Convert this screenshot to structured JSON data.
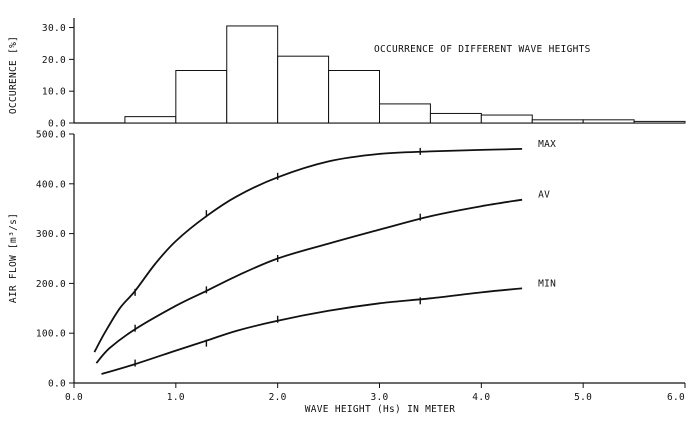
{
  "chart_data": [
    {
      "type": "bar",
      "title": "OCCURRENCE OF DIFFERENT WAVE HEIGHTS",
      "ylabel": "OCCURENCE [%]",
      "ylim": [
        0,
        33
      ],
      "yticks": [
        "0.0",
        "10.0",
        "20.0",
        "30.0"
      ],
      "bin_width": 0.5,
      "bin_starts": [
        0.5,
        1.0,
        1.5,
        2.0,
        2.5,
        3.0,
        3.5,
        4.0,
        4.5,
        5.0,
        5.5
      ],
      "values": [
        2.0,
        16.5,
        30.5,
        21.0,
        16.5,
        6.0,
        3.0,
        2.5,
        1.0,
        1.0,
        0.5
      ]
    },
    {
      "type": "line",
      "xlabel": "WAVE HEIGHT (Hs) IN METER",
      "ylabel": "AIR FLOW [m³/s]",
      "xlim": [
        0,
        6
      ],
      "ylim": [
        0,
        500
      ],
      "xticks": [
        "0.0",
        "1.0",
        "2.0",
        "3.0",
        "4.0",
        "5.0",
        "6.0"
      ],
      "yticks": [
        "0.0",
        "100.0",
        "200.0",
        "300.0",
        "400.0",
        "500.0"
      ],
      "series": [
        {
          "name": "MAX",
          "x": [
            0.2,
            0.3,
            0.45,
            0.6,
            0.8,
            1.0,
            1.3,
            1.6,
            2.0,
            2.5,
            3.0,
            3.5,
            4.0,
            4.4
          ],
          "y": [
            62,
            100,
            150,
            185,
            240,
            285,
            335,
            375,
            413,
            445,
            460,
            465,
            468,
            470
          ]
        },
        {
          "name": "AV",
          "x": [
            0.22,
            0.35,
            0.6,
            1.0,
            1.3,
            1.6,
            2.0,
            2.5,
            3.0,
            3.5,
            4.0,
            4.4
          ],
          "y": [
            40,
            70,
            108,
            155,
            185,
            215,
            250,
            280,
            308,
            335,
            355,
            368
          ]
        },
        {
          "name": "MIN",
          "x": [
            0.27,
            0.6,
            1.0,
            1.3,
            1.6,
            2.0,
            2.5,
            3.0,
            3.5,
            4.0,
            4.4
          ],
          "y": [
            18,
            38,
            65,
            85,
            105,
            125,
            145,
            160,
            170,
            182,
            190
          ]
        }
      ],
      "markers": [
        {
          "series": "MAX",
          "x": 0.6,
          "y": 182
        },
        {
          "series": "MAX",
          "x": 1.3,
          "y": 340
        },
        {
          "series": "MAX",
          "x": 2.0,
          "y": 415
        },
        {
          "series": "MAX",
          "x": 3.4,
          "y": 465
        },
        {
          "series": "AV",
          "x": 0.6,
          "y": 110
        },
        {
          "series": "AV",
          "x": 1.3,
          "y": 187
        },
        {
          "series": "AV",
          "x": 2.0,
          "y": 250
        },
        {
          "series": "AV",
          "x": 3.4,
          "y": 333
        },
        {
          "series": "MIN",
          "x": 0.6,
          "y": 40
        },
        {
          "series": "MIN",
          "x": 1.3,
          "y": 80
        },
        {
          "series": "MIN",
          "x": 2.0,
          "y": 128
        },
        {
          "series": "MIN",
          "x": 3.4,
          "y": 165
        }
      ]
    }
  ]
}
